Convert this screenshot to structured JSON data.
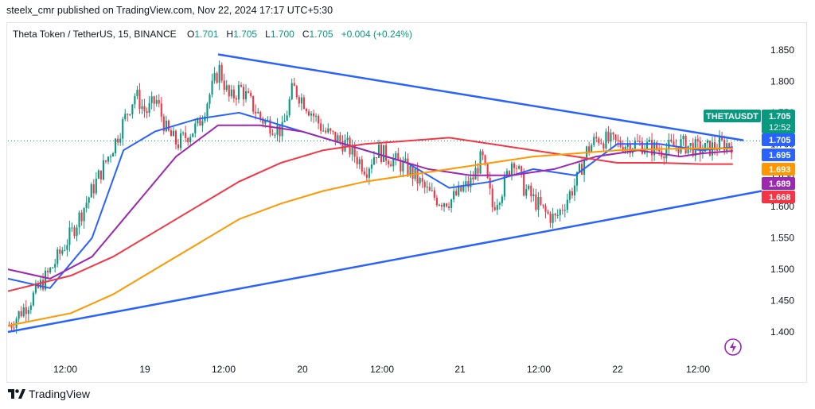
{
  "header": {
    "published": "steelx_cmr published on TradingView.com, Nov 22, 2024 17:17 UTC+5:30"
  },
  "legend": {
    "symbol": "Theta Token / TetherUS, 15, BINANCE",
    "o_label": "O",
    "o": "1.701",
    "h_label": "H",
    "h": "1.705",
    "l_label": "L",
    "l": "1.700",
    "c_label": "C",
    "c": "1.705",
    "change": "+0.004 (+0.24%)"
  },
  "footer": {
    "brand": "TradingView"
  },
  "colors": {
    "up": "#089981",
    "down": "#f23645",
    "trendline": "#2962ff",
    "ma_blue": "#2962ff",
    "ma_purple": "#9c27b0",
    "ma_red": "#f23645",
    "ma_orange": "#ff9800"
  },
  "chart_data": {
    "type": "candlestick",
    "ylim": [
      1.37,
      1.88
    ],
    "y_ticks": [
      "1.850",
      "1.800",
      "1.750",
      "1.700",
      "1.650",
      "1.600",
      "1.550",
      "1.500",
      "1.450",
      "1.400"
    ],
    "x_ticks": [
      "12:00",
      "19",
      "12:00",
      "20",
      "12:00",
      "21",
      "12:00",
      "22",
      "12:00"
    ],
    "price_badges": [
      {
        "label": "THETAUSDT",
        "value": "1.705",
        "sub": "12:52",
        "color": "#089981"
      },
      {
        "value": "1.705",
        "color": "#2962ff"
      },
      {
        "value": "1.695",
        "color": "#2962ff"
      },
      {
        "value": "1.693",
        "color": "#ff9800"
      },
      {
        "value": "1.689",
        "color": "#9c27b0"
      },
      {
        "value": "1.668",
        "color": "#f23645"
      }
    ],
    "price_path": [
      [
        0,
        1.41
      ],
      [
        2,
        1.45
      ],
      [
        4,
        1.5
      ],
      [
        6,
        1.56
      ],
      [
        8,
        1.63
      ],
      [
        10,
        1.7
      ],
      [
        12,
        1.78
      ],
      [
        13,
        1.75
      ],
      [
        14,
        1.77
      ],
      [
        15,
        1.72
      ],
      [
        16,
        1.7
      ],
      [
        18,
        1.73
      ],
      [
        20,
        1.82
      ],
      [
        21,
        1.77
      ],
      [
        22,
        1.79
      ],
      [
        24,
        1.74
      ],
      [
        26,
        1.72
      ],
      [
        27,
        1.79
      ],
      [
        28,
        1.77
      ],
      [
        30,
        1.72
      ],
      [
        32,
        1.7
      ],
      [
        34,
        1.66
      ],
      [
        35,
        1.69
      ],
      [
        37,
        1.67
      ],
      [
        38,
        1.66
      ],
      [
        40,
        1.62
      ],
      [
        41,
        1.61
      ],
      [
        42,
        1.61
      ],
      [
        44,
        1.64
      ],
      [
        45,
        1.68
      ],
      [
        46,
        1.6
      ],
      [
        47,
        1.63
      ],
      [
        48,
        1.68
      ],
      [
        49,
        1.63
      ],
      [
        51,
        1.59
      ],
      [
        52,
        1.58
      ],
      [
        54,
        1.64
      ],
      [
        55,
        1.69
      ],
      [
        56,
        1.71
      ],
      [
        58,
        1.7
      ],
      [
        60,
        1.7
      ],
      [
        62,
        1.69
      ],
      [
        64,
        1.7
      ],
      [
        66,
        1.69
      ],
      [
        68,
        1.7
      ],
      [
        69,
        1.7
      ]
    ],
    "ma_lines": [
      {
        "color": "#2962ff",
        "points": [
          [
            0,
            1.485
          ],
          [
            4,
            1.47
          ],
          [
            8,
            1.55
          ],
          [
            11,
            1.69
          ],
          [
            14,
            1.72
          ],
          [
            18,
            1.74
          ],
          [
            22,
            1.75
          ],
          [
            26,
            1.73
          ],
          [
            30,
            1.71
          ],
          [
            34,
            1.69
          ],
          [
            38,
            1.67
          ],
          [
            42,
            1.63
          ],
          [
            46,
            1.64
          ],
          [
            50,
            1.66
          ],
          [
            54,
            1.65
          ],
          [
            58,
            1.7
          ],
          [
            62,
            1.7
          ],
          [
            66,
            1.69
          ],
          [
            69,
            1.695
          ]
        ]
      },
      {
        "color": "#9c27b0",
        "points": [
          [
            0,
            1.5
          ],
          [
            4,
            1.485
          ],
          [
            8,
            1.52
          ],
          [
            12,
            1.6
          ],
          [
            16,
            1.68
          ],
          [
            20,
            1.73
          ],
          [
            24,
            1.73
          ],
          [
            28,
            1.72
          ],
          [
            32,
            1.7
          ],
          [
            36,
            1.68
          ],
          [
            40,
            1.66
          ],
          [
            44,
            1.65
          ],
          [
            48,
            1.65
          ],
          [
            52,
            1.66
          ],
          [
            56,
            1.68
          ],
          [
            60,
            1.69
          ],
          [
            64,
            1.68
          ],
          [
            66,
            1.685
          ],
          [
            69,
            1.689
          ]
        ]
      },
      {
        "color": "#f23645",
        "points": [
          [
            0,
            1.465
          ],
          [
            6,
            1.49
          ],
          [
            10,
            1.52
          ],
          [
            14,
            1.56
          ],
          [
            18,
            1.6
          ],
          [
            22,
            1.64
          ],
          [
            26,
            1.67
          ],
          [
            30,
            1.69
          ],
          [
            34,
            1.7
          ],
          [
            38,
            1.705
          ],
          [
            42,
            1.71
          ],
          [
            46,
            1.7
          ],
          [
            50,
            1.69
          ],
          [
            54,
            1.68
          ],
          [
            58,
            1.67
          ],
          [
            62,
            1.67
          ],
          [
            66,
            1.668
          ],
          [
            69,
            1.668
          ]
        ]
      },
      {
        "color": "#ff9800",
        "points": [
          [
            0,
            1.41
          ],
          [
            6,
            1.43
          ],
          [
            10,
            1.46
          ],
          [
            14,
            1.5
          ],
          [
            18,
            1.54
          ],
          [
            22,
            1.58
          ],
          [
            26,
            1.605
          ],
          [
            30,
            1.625
          ],
          [
            34,
            1.64
          ],
          [
            38,
            1.65
          ],
          [
            42,
            1.66
          ],
          [
            46,
            1.67
          ],
          [
            50,
            1.68
          ],
          [
            54,
            1.685
          ],
          [
            58,
            1.69
          ],
          [
            62,
            1.692
          ],
          [
            66,
            1.693
          ],
          [
            69,
            1.693
          ]
        ]
      }
    ],
    "trendlines": [
      {
        "from": [
          20,
          1.843
        ],
        "to": [
          70,
          1.706
        ]
      },
      {
        "from": [
          0,
          1.4
        ],
        "to": [
          72,
          1.625
        ]
      }
    ]
  }
}
